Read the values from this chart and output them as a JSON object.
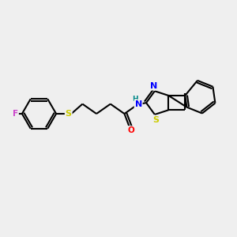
{
  "background_color": "#efefef",
  "bond_color": "#000000",
  "atom_colors": {
    "F": "#cc44cc",
    "S": "#cccc00",
    "O": "#ff0000",
    "N": "#0000ff",
    "H": "#008888",
    "C": "#000000"
  },
  "figsize": [
    3.0,
    3.0
  ],
  "dpi": 100
}
